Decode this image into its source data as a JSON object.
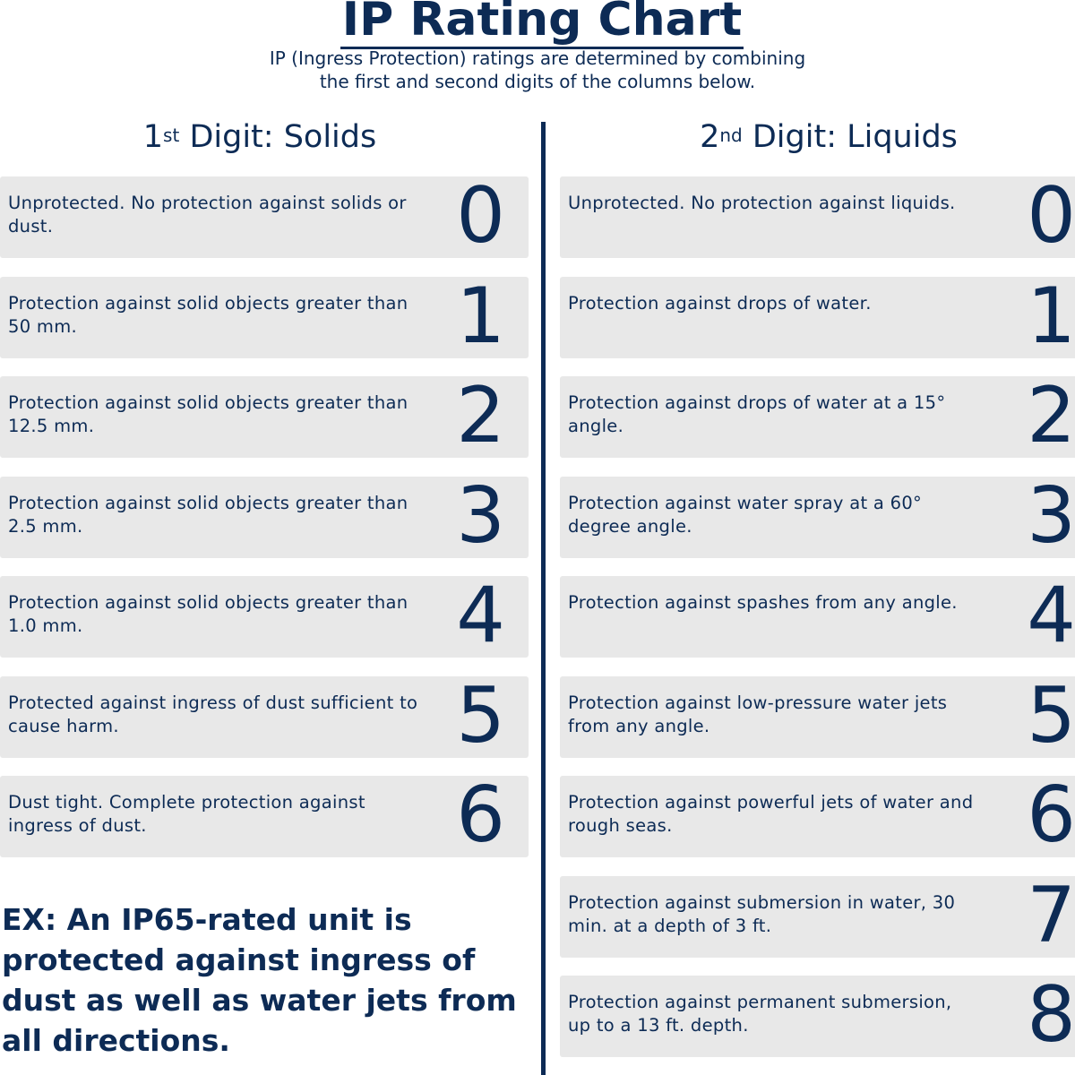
{
  "title": "IP Rating Chart",
  "subtitle_line1": "IP (Ingress Protection) ratings are determined by combining",
  "subtitle_line2": "the first and second digits of the columns below.",
  "colors": {
    "navy": "#0d2b55",
    "box": "#e8e8e8"
  },
  "solids": {
    "ordinal_num": "1",
    "ordinal_suffix": "st",
    "heading": "Digit: Solids",
    "rows": [
      {
        "digit": "0",
        "text": "Unprotected. No protection against solids or dust."
      },
      {
        "digit": "1",
        "text": "Protection against solid objects greater than 50 mm."
      },
      {
        "digit": "2",
        "text": "Protection against solid objects greater than 12.5 mm."
      },
      {
        "digit": "3",
        "text": "Protection against solid objects greater than 2.5 mm."
      },
      {
        "digit": "4",
        "text": "Protection against solid objects greater than 1.0 mm."
      },
      {
        "digit": "5",
        "text": "Protected against ingress of dust sufficient to cause harm."
      },
      {
        "digit": "6",
        "text": "Dust tight. Complete protection against ingress of dust."
      }
    ]
  },
  "liquids": {
    "ordinal_num": "2",
    "ordinal_suffix": "nd",
    "heading": "Digit: Liquids",
    "rows": [
      {
        "digit": "0",
        "text": "Unprotected. No protection against liquids."
      },
      {
        "digit": "1",
        "text": "Protection against drops of water."
      },
      {
        "digit": "2",
        "text": "Protection against drops of water at a 15° angle."
      },
      {
        "digit": "3",
        "text": "Protection against water spray at a 60° degree angle."
      },
      {
        "digit": "4",
        "text": "Protection against spashes from any angle."
      },
      {
        "digit": "5",
        "text": "Protection against low-pressure water jets from any angle."
      },
      {
        "digit": "6",
        "text": "Protection against powerful jets of water and rough seas."
      },
      {
        "digit": "7",
        "text": "Protection against submersion in water, 30 min. at a depth of 3 ft."
      },
      {
        "digit": "8",
        "text": "Protection against permanent submersion, up to a 13 ft. depth."
      }
    ]
  },
  "example": "EX: An IP65-rated unit is protected against ingress of dust as well as water jets from all directions."
}
